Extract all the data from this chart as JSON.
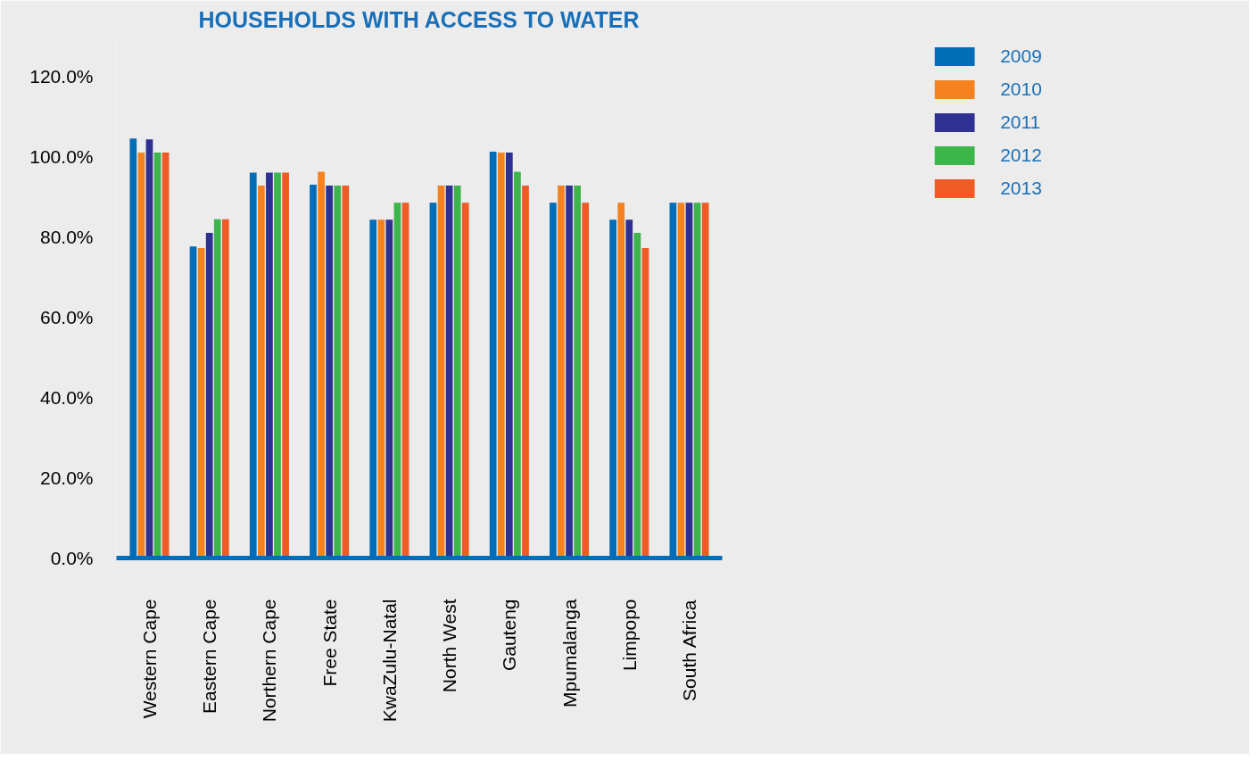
{
  "chart_data": {
    "type": "bar",
    "title": "HOUSEHOLDS WITH ACCESS TO WATER",
    "categories": [
      "Western Cape",
      "Eastern Cape",
      "Northern Cape",
      "Free State",
      "KwaZulu-Natal",
      "North West",
      "Gauteng",
      "Mpumalanga",
      "Limpopo",
      "South Africa"
    ],
    "series": [
      {
        "name": "2009",
        "color": "#006db8",
        "values": [
          104.5,
          77.6,
          96,
          93,
          84.3,
          88.5,
          101.2,
          88.5,
          84.3,
          88.5
        ]
      },
      {
        "name": "2010",
        "color": "#f5821f",
        "values": [
          101,
          77.2,
          92.8,
          96.2,
          84.3,
          92.8,
          101,
          92.8,
          88.5,
          88.5
        ]
      },
      {
        "name": "2011",
        "color": "#2e3192",
        "values": [
          104.3,
          81,
          96,
          92.8,
          84.3,
          92.8,
          101,
          92.8,
          84.3,
          88.5
        ]
      },
      {
        "name": "2012",
        "color": "#3cb54a",
        "values": [
          101,
          84.4,
          96,
          92.8,
          88.5,
          92.8,
          96.2,
          92.8,
          81,
          88.5
        ]
      },
      {
        "name": "2013",
        "color": "#f05a24",
        "values": [
          101,
          84.4,
          96,
          92.8,
          88.5,
          88.5,
          92.8,
          88.5,
          77.2,
          88.5
        ]
      }
    ],
    "ylim": [
      0,
      130
    ],
    "yticks": [
      {
        "value": 0,
        "label": "0.0%"
      },
      {
        "value": 20,
        "label": "20.0%"
      },
      {
        "value": 40,
        "label": "40.0%"
      },
      {
        "value": 60,
        "label": "60.0%"
      },
      {
        "value": 80,
        "label": "80.0%"
      },
      {
        "value": 100,
        "label": "100.0%"
      },
      {
        "value": 120,
        "label": "120.0%"
      }
    ],
    "grid": false,
    "legend": "top right"
  }
}
